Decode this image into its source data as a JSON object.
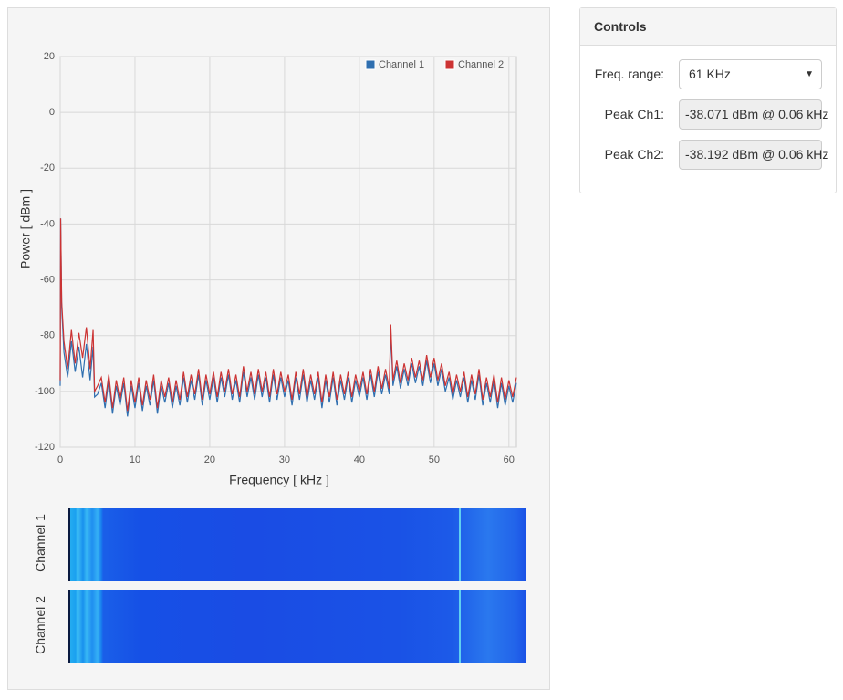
{
  "chart_data": {
    "type": "line",
    "xlabel": "Frequency [ kHz ]",
    "ylabel": "Power [ dBm ]",
    "x": [
      0,
      0.06,
      0.2,
      0.5,
      1,
      1.5,
      2,
      2.5,
      3,
      3.5,
      4,
      4.4,
      4.6,
      5,
      5.5,
      6,
      6.5,
      7,
      7.5,
      8,
      8.5,
      9,
      9.5,
      10,
      10.5,
      11,
      11.5,
      12,
      12.5,
      13,
      13.5,
      14,
      14.5,
      15,
      15.5,
      16,
      16.5,
      17,
      17.5,
      18,
      18.5,
      19,
      19.5,
      20,
      20.5,
      21,
      21.5,
      22,
      22.5,
      23,
      23.5,
      24,
      24.5,
      25,
      25.5,
      26,
      26.5,
      27,
      27.5,
      28,
      28.5,
      29,
      29.5,
      30,
      30.5,
      31,
      31.5,
      32,
      32.5,
      33,
      33.5,
      34,
      34.5,
      35,
      35.5,
      36,
      36.5,
      37,
      37.5,
      38,
      38.5,
      39,
      39.5,
      40,
      40.5,
      41,
      41.5,
      42,
      42.5,
      43,
      43.5,
      44,
      44.2,
      44.5,
      45,
      45.5,
      46,
      46.5,
      47,
      47.5,
      48,
      48.5,
      49,
      49.5,
      50,
      50.5,
      51,
      51.5,
      52,
      52.5,
      53,
      53.5,
      54,
      54.5,
      55,
      55.5,
      56,
      56.5,
      57,
      57.5,
      58,
      58.5,
      59,
      59.5,
      60,
      60.5,
      61
    ],
    "series": [
      {
        "name": "Channel 1",
        "color": "#2f6fb0",
        "values": [
          -98,
          -38,
          -70,
          -86,
          -95,
          -82,
          -93,
          -84,
          -95,
          -83,
          -96,
          -84,
          -102,
          -101,
          -97,
          -106,
          -96,
          -108,
          -98,
          -105,
          -97,
          -109,
          -98,
          -106,
          -97,
          -107,
          -98,
          -105,
          -96,
          -108,
          -98,
          -104,
          -97,
          -106,
          -98,
          -105,
          -95,
          -104,
          -96,
          -103,
          -94,
          -105,
          -96,
          -103,
          -95,
          -104,
          -95,
          -102,
          -94,
          -103,
          -96,
          -104,
          -93,
          -102,
          -95,
          -103,
          -94,
          -102,
          -95,
          -104,
          -94,
          -103,
          -95,
          -102,
          -96,
          -105,
          -95,
          -103,
          -94,
          -104,
          -96,
          -103,
          -95,
          -106,
          -96,
          -104,
          -95,
          -105,
          -96,
          -103,
          -95,
          -104,
          -96,
          -102,
          -95,
          -103,
          -94,
          -102,
          -93,
          -101,
          -94,
          -101,
          -78,
          -98,
          -91,
          -99,
          -92,
          -98,
          -90,
          -97,
          -91,
          -98,
          -89,
          -97,
          -90,
          -98,
          -92,
          -100,
          -95,
          -103,
          -96,
          -102,
          -95,
          -104,
          -96,
          -103,
          -94,
          -105,
          -97,
          -104,
          -96,
          -106,
          -97,
          -105,
          -98,
          -104,
          -97
        ]
      },
      {
        "name": "Channel 2",
        "color": "#cc3333",
        "values": [
          -96,
          -38,
          -68,
          -82,
          -92,
          -78,
          -90,
          -79,
          -88,
          -77,
          -92,
          -78,
          -100,
          -98,
          -95,
          -104,
          -94,
          -106,
          -96,
          -103,
          -95,
          -107,
          -96,
          -104,
          -95,
          -105,
          -96,
          -103,
          -94,
          -106,
          -96,
          -102,
          -95,
          -104,
          -96,
          -103,
          -93,
          -102,
          -94,
          -101,
          -92,
          -103,
          -94,
          -101,
          -93,
          -102,
          -93,
          -100,
          -92,
          -101,
          -94,
          -102,
          -91,
          -100,
          -93,
          -101,
          -92,
          -100,
          -93,
          -102,
          -92,
          -101,
          -93,
          -100,
          -94,
          -103,
          -93,
          -101,
          -92,
          -102,
          -94,
          -101,
          -93,
          -104,
          -94,
          -102,
          -93,
          -103,
          -94,
          -101,
          -93,
          -102,
          -94,
          -100,
          -93,
          -101,
          -92,
          -100,
          -91,
          -99,
          -92,
          -99,
          -76,
          -96,
          -89,
          -97,
          -90,
          -96,
          -88,
          -95,
          -89,
          -96,
          -87,
          -95,
          -88,
          -96,
          -90,
          -98,
          -93,
          -101,
          -94,
          -100,
          -93,
          -102,
          -94,
          -101,
          -92,
          -103,
          -95,
          -102,
          -94,
          -104,
          -95,
          -103,
          -96,
          -102,
          -95
        ]
      }
    ],
    "xlim": [
      0,
      61
    ],
    "ylim": [
      -120,
      20
    ],
    "xticks": [
      0,
      10,
      20,
      30,
      40,
      50,
      60
    ],
    "yticks": [
      -120,
      -100,
      -80,
      -60,
      -40,
      -20,
      0,
      20
    ],
    "grid": true,
    "legend": "upper right"
  },
  "waterfall": {
    "channels": [
      "Channel 1",
      "Channel 2"
    ]
  },
  "controls": {
    "title": "Controls",
    "freq_range_label": "Freq. range:",
    "freq_range_value": "61 KHz",
    "peak_ch1_label": "Peak Ch1:",
    "peak_ch1_value": "-38.071 dBm @ 0.06 kHz",
    "peak_ch2_label": "Peak Ch2:",
    "peak_ch2_value": "-38.192 dBm @ 0.06 kHz"
  }
}
